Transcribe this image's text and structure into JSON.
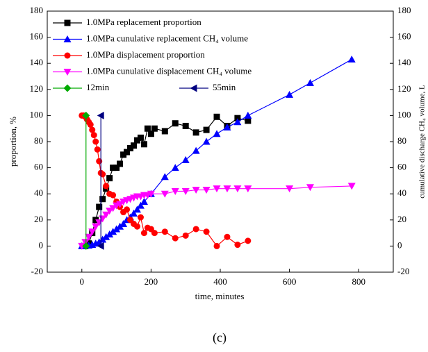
{
  "chart_data": {
    "type": "line",
    "xlabel": "time, minutes",
    "ylabel": "proportion,  %",
    "y2label": "cumulative discharge CH₄ volume,  L",
    "caption": "(c)",
    "xlim": [
      -100,
      900
    ],
    "xticks": [
      0,
      200,
      400,
      600,
      800
    ],
    "ylim": [
      -20,
      180
    ],
    "yticks": [
      -20,
      0,
      20,
      40,
      60,
      80,
      100,
      120,
      140,
      160,
      180
    ],
    "y2lim": [
      -20,
      180
    ],
    "y2ticks": [
      -20,
      0,
      20,
      40,
      60,
      80,
      100,
      120,
      140,
      160,
      180
    ],
    "series": [
      {
        "name": "1.0MPa replacement proportion",
        "color": "#000000",
        "marker": "square",
        "x": [
          10,
          20,
          30,
          40,
          50,
          60,
          70,
          80,
          90,
          100,
          110,
          120,
          130,
          140,
          150,
          160,
          170,
          180,
          190,
          200,
          210,
          240,
          270,
          300,
          330,
          360,
          390,
          420,
          450,
          480
        ],
        "values": [
          0,
          2,
          10,
          20,
          30,
          36,
          44,
          52,
          60,
          60,
          63,
          70,
          72,
          75,
          77,
          81,
          83,
          78,
          90,
          86,
          90,
          88,
          94,
          92,
          87,
          89,
          99,
          92,
          98,
          96
        ]
      },
      {
        "name": "1.0MPa cunulative replacement CH₄ volume",
        "color": "#0000ff",
        "marker": "triangle-up",
        "axis": "y2",
        "x": [
          0,
          20,
          30,
          40,
          50,
          60,
          70,
          80,
          90,
          100,
          110,
          120,
          130,
          140,
          150,
          160,
          170,
          180,
          200,
          240,
          270,
          300,
          330,
          360,
          390,
          420,
          450,
          480,
          600,
          660,
          780
        ],
        "values": [
          0,
          0.5,
          1,
          2,
          3,
          5,
          7,
          9,
          11,
          13,
          15,
          17,
          20,
          22,
          25,
          28,
          31,
          34,
          40,
          53,
          60,
          66,
          73,
          80,
          86,
          91,
          95,
          100,
          116,
          125,
          143
        ]
      },
      {
        "name": "1.0MPa displacement proportion",
        "color": "#ff0000",
        "marker": "circle",
        "x": [
          0,
          5,
          10,
          15,
          20,
          25,
          30,
          35,
          40,
          45,
          50,
          55,
          60,
          70,
          80,
          90,
          100,
          110,
          120,
          130,
          140,
          150,
          160,
          170,
          180,
          190,
          200,
          210,
          240,
          270,
          300,
          330,
          360,
          390,
          420,
          450,
          480
        ],
        "values": [
          100,
          100,
          99,
          97,
          95,
          93,
          89,
          85,
          80,
          74,
          65,
          56,
          55,
          46,
          40,
          39,
          34,
          30,
          26,
          28,
          20,
          17,
          15,
          22,
          10,
          14,
          13,
          10,
          11,
          6,
          8,
          13,
          11,
          0,
          7,
          1,
          4
        ]
      },
      {
        "name": "1.0MPa cunulative displacement CH₄ volume",
        "color": "#ff00ff",
        "marker": "triangle-down",
        "axis": "y2",
        "x": [
          0,
          10,
          20,
          30,
          40,
          50,
          60,
          70,
          80,
          90,
          100,
          110,
          120,
          130,
          140,
          150,
          160,
          170,
          180,
          190,
          200,
          240,
          270,
          300,
          330,
          360,
          390,
          420,
          450,
          480,
          600,
          660,
          780
        ],
        "values": [
          0,
          3,
          7,
          11,
          15,
          18,
          21,
          24,
          27,
          29,
          31,
          32,
          34,
          35,
          36,
          37,
          38,
          38,
          39,
          39,
          40,
          40,
          42,
          42,
          43,
          43,
          44,
          44,
          44,
          44,
          44,
          45,
          46
        ]
      },
      {
        "name": "12min",
        "color": "#00aa00",
        "marker": "diamond",
        "x": [
          12,
          12
        ],
        "values": [
          0,
          100
        ]
      },
      {
        "name": "55min",
        "color": "#000080",
        "marker": "triangle-left",
        "x": [
          55,
          55
        ],
        "values": [
          0,
          100
        ]
      }
    ]
  }
}
